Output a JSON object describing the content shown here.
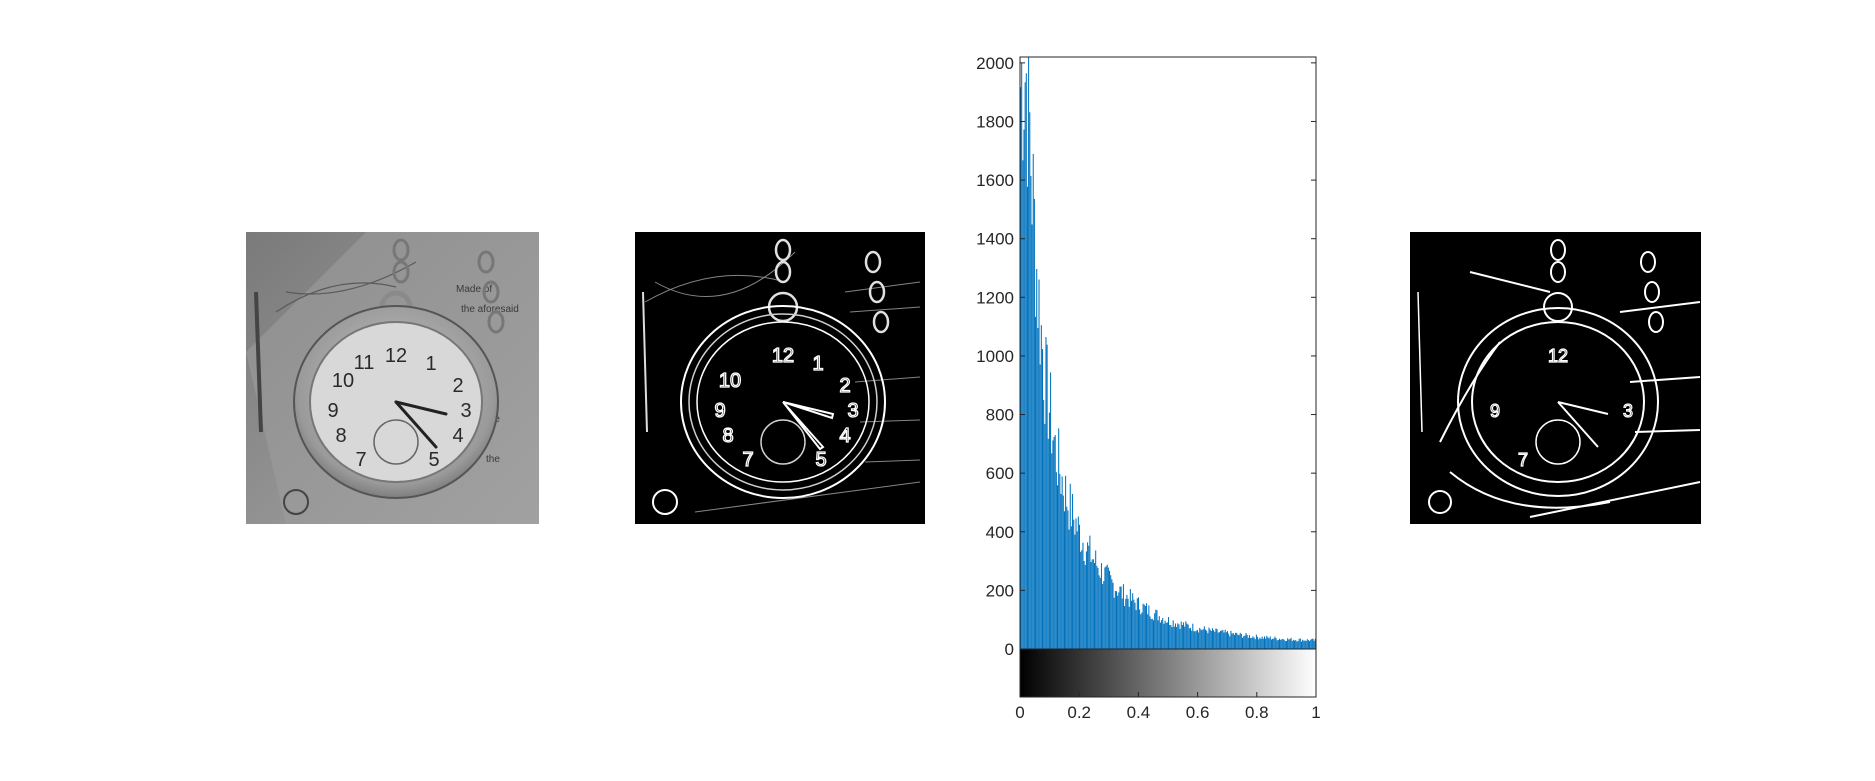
{
  "figure": {
    "panels": [
      {
        "id": "original",
        "description_type": "grayscale-image",
        "colors": {
          "base": "#8a8a8a"
        }
      },
      {
        "id": "gradient",
        "description_type": "gradient-magnitude-image",
        "colors": {
          "base": "#000000",
          "edges": "#e6e6e6"
        }
      },
      {
        "id": "binary",
        "description_type": "thresholded-edge-image",
        "colors": {
          "base": "#000000",
          "edges": "#ffffff"
        }
      }
    ]
  },
  "chart_data": {
    "type": "bar",
    "title": "",
    "xlabel": "",
    "ylabel": "",
    "xlim": [
      0,
      1
    ],
    "ylim": [
      -170,
      2020
    ],
    "grid": false,
    "bar_color": "#0072bd",
    "yticks": [
      0,
      200,
      400,
      600,
      800,
      1000,
      1200,
      1400,
      1600,
      1800,
      2000
    ],
    "xticks": [
      0,
      0.2,
      0.4,
      0.6,
      0.8,
      1
    ],
    "ytick_labels": [
      "0",
      "200",
      "400",
      "600",
      "800",
      "1000",
      "1200",
      "1400",
      "1600",
      "1800",
      "2000"
    ],
    "xtick_labels": [
      "0",
      "0.2",
      "0.4",
      "0.6",
      "0.8",
      "1"
    ],
    "colorbar": {
      "from": "#000000",
      "to": "#ffffff",
      "range": [
        0,
        1
      ]
    },
    "bins": 256,
    "envelope": [
      [
        0.0,
        1950
      ],
      [
        0.01,
        2020
      ],
      [
        0.02,
        2020
      ],
      [
        0.03,
        1880
      ],
      [
        0.04,
        1640
      ],
      [
        0.05,
        1450
      ],
      [
        0.06,
        1260
      ],
      [
        0.07,
        1130
      ],
      [
        0.08,
        1000
      ],
      [
        0.09,
        900
      ],
      [
        0.1,
        840
      ],
      [
        0.11,
        760
      ],
      [
        0.12,
        690
      ],
      [
        0.14,
        600
      ],
      [
        0.16,
        520
      ],
      [
        0.18,
        460
      ],
      [
        0.2,
        410
      ],
      [
        0.22,
        360
      ],
      [
        0.25,
        310
      ],
      [
        0.28,
        265
      ],
      [
        0.3,
        240
      ],
      [
        0.35,
        190
      ],
      [
        0.4,
        155
      ],
      [
        0.45,
        125
      ],
      [
        0.5,
        100
      ],
      [
        0.55,
        85
      ],
      [
        0.6,
        72
      ],
      [
        0.65,
        62
      ],
      [
        0.7,
        55
      ],
      [
        0.75,
        48
      ],
      [
        0.8,
        42
      ],
      [
        0.85,
        38
      ],
      [
        0.9,
        34
      ],
      [
        0.95,
        32
      ],
      [
        1.0,
        30
      ]
    ]
  }
}
